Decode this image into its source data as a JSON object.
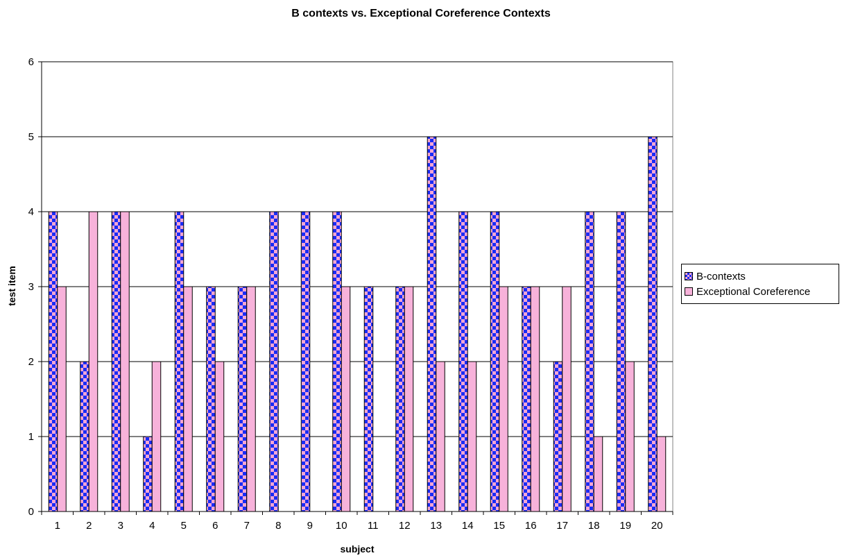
{
  "chart_data": {
    "type": "bar",
    "title": "B contexts vs. Exceptional Coreference Contexts",
    "xlabel": "subject",
    "ylabel": "test item",
    "categories": [
      "1",
      "2",
      "3",
      "4",
      "5",
      "6",
      "7",
      "8",
      "9",
      "10",
      "11",
      "12",
      "13",
      "14",
      "15",
      "16",
      "17",
      "18",
      "19",
      "20"
    ],
    "series": [
      {
        "name": "B-contexts",
        "values": [
          4,
          2,
          4,
          1,
          4,
          3,
          3,
          4,
          4,
          4,
          3,
          3,
          5,
          4,
          4,
          3,
          2,
          4,
          4,
          5
        ],
        "pattern": "checker",
        "color": "#1a2cf6",
        "color2": "#f5a6d3"
      },
      {
        "name": "Exceptional Coreference",
        "values": [
          3,
          4,
          4,
          2,
          3,
          2,
          3,
          0,
          0,
          3,
          0,
          3,
          2,
          2,
          3,
          3,
          3,
          1,
          2,
          1
        ],
        "pattern": "solid",
        "color": "#f7b2da"
      }
    ],
    "ylim": [
      0,
      6
    ],
    "yticks": [
      0,
      1,
      2,
      3,
      4,
      5,
      6
    ],
    "grid": true,
    "legend_position": "right"
  }
}
